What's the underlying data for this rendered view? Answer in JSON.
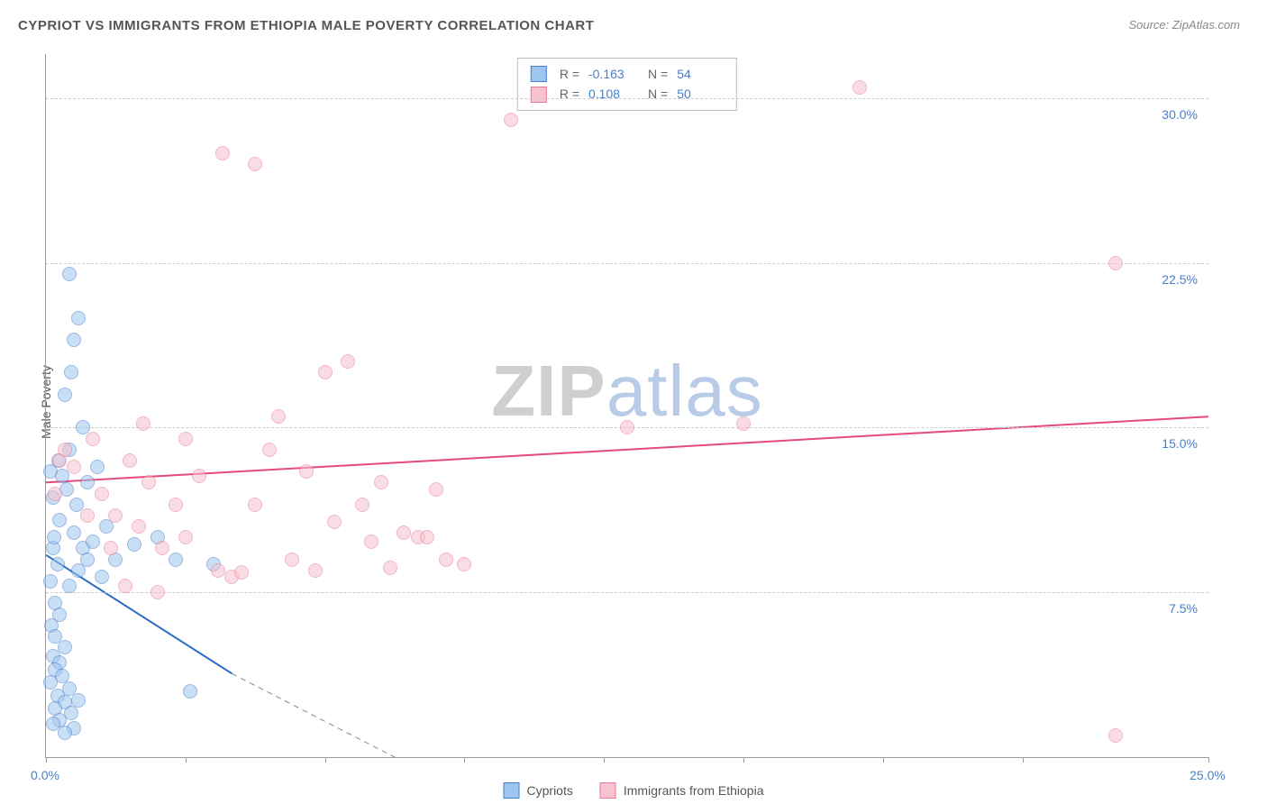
{
  "title": "CYPRIOT VS IMMIGRANTS FROM ETHIOPIA MALE POVERTY CORRELATION CHART",
  "source": "Source: ZipAtlas.com",
  "y_axis_label": "Male Poverty",
  "watermark_a": "ZIP",
  "watermark_b": "atlas",
  "chart": {
    "type": "scatter",
    "background_color": "#ffffff",
    "grid_color": "#cccccc",
    "xlim": [
      0,
      25
    ],
    "ylim": [
      0,
      32
    ],
    "x_ticks": [
      0,
      3,
      6,
      9,
      12,
      15,
      18,
      21,
      25
    ],
    "x_tick_labels": {
      "0": "0.0%",
      "25": "25.0%"
    },
    "y_gridlines": [
      7.5,
      15.0,
      22.5,
      30.0
    ],
    "y_tick_labels": [
      "7.5%",
      "15.0%",
      "22.5%",
      "30.0%"
    ],
    "marker_radius": 8,
    "marker_opacity": 0.55,
    "series": [
      {
        "name": "Cypriots",
        "color_fill": "#9ec5f0",
        "color_stroke": "#4a7ec9",
        "R": "-0.163",
        "N": "54",
        "trend": {
          "x1": 0,
          "y1": 9.2,
          "x2": 4.0,
          "y2": 3.8,
          "extend_x2": 7.5,
          "extend_y2": 0,
          "color": "#2b6cc7",
          "width": 2
        },
        "points": [
          [
            0.1,
            13.0
          ],
          [
            0.15,
            11.8
          ],
          [
            0.1,
            8.0
          ],
          [
            0.2,
            7.0
          ],
          [
            0.3,
            6.5
          ],
          [
            0.12,
            6.0
          ],
          [
            0.2,
            5.5
          ],
          [
            0.4,
            5.0
          ],
          [
            0.15,
            4.6
          ],
          [
            0.3,
            4.3
          ],
          [
            0.2,
            4.0
          ],
          [
            0.35,
            3.7
          ],
          [
            0.1,
            3.4
          ],
          [
            0.5,
            3.1
          ],
          [
            0.25,
            2.8
          ],
          [
            0.4,
            2.5
          ],
          [
            0.2,
            2.2
          ],
          [
            0.55,
            2.0
          ],
          [
            0.3,
            1.7
          ],
          [
            0.15,
            1.5
          ],
          [
            0.6,
            1.3
          ],
          [
            0.4,
            1.1
          ],
          [
            0.7,
            2.6
          ],
          [
            0.5,
            14.0
          ],
          [
            0.8,
            9.5
          ],
          [
            0.6,
            10.2
          ],
          [
            0.9,
            9.0
          ],
          [
            0.7,
            8.5
          ],
          [
            1.0,
            9.8
          ],
          [
            1.2,
            8.2
          ],
          [
            0.5,
            22.0
          ],
          [
            0.7,
            20.0
          ],
          [
            0.6,
            19.0
          ],
          [
            0.55,
            17.5
          ],
          [
            0.4,
            16.5
          ],
          [
            0.8,
            15.0
          ],
          [
            1.3,
            10.5
          ],
          [
            1.5,
            9.0
          ],
          [
            1.9,
            9.7
          ],
          [
            2.4,
            10.0
          ],
          [
            2.8,
            9.0
          ],
          [
            3.6,
            8.8
          ],
          [
            3.1,
            3.0
          ],
          [
            0.45,
            12.2
          ],
          [
            0.3,
            10.8
          ],
          [
            0.65,
            11.5
          ],
          [
            0.9,
            12.5
          ],
          [
            1.1,
            13.2
          ],
          [
            0.15,
            9.5
          ],
          [
            0.25,
            8.8
          ],
          [
            0.5,
            7.8
          ],
          [
            0.35,
            12.8
          ],
          [
            0.18,
            10.0
          ],
          [
            0.28,
            13.5
          ]
        ]
      },
      {
        "name": "Immigrants from Ethiopia",
        "color_fill": "#f6c3ce",
        "color_stroke": "#e87b97",
        "R": "0.108",
        "N": "50",
        "trend": {
          "x1": 0,
          "y1": 12.5,
          "x2": 25,
          "y2": 15.5,
          "color": "#e64a7a",
          "width": 2
        },
        "points": [
          [
            0.3,
            13.5
          ],
          [
            0.4,
            14.0
          ],
          [
            0.2,
            12.0
          ],
          [
            0.6,
            13.2
          ],
          [
            1.0,
            14.5
          ],
          [
            1.2,
            12.0
          ],
          [
            1.5,
            11.0
          ],
          [
            1.8,
            13.5
          ],
          [
            2.0,
            10.5
          ],
          [
            2.2,
            12.5
          ],
          [
            2.5,
            9.5
          ],
          [
            2.8,
            11.5
          ],
          [
            3.0,
            10.0
          ],
          [
            3.3,
            12.8
          ],
          [
            3.7,
            8.5
          ],
          [
            4.0,
            8.2
          ],
          [
            4.2,
            8.4
          ],
          [
            4.5,
            11.5
          ],
          [
            5.0,
            15.5
          ],
          [
            5.3,
            9.0
          ],
          [
            5.6,
            13.0
          ],
          [
            6.2,
            10.7
          ],
          [
            6.5,
            18.0
          ],
          [
            6.8,
            11.5
          ],
          [
            7.0,
            9.8
          ],
          [
            7.2,
            12.5
          ],
          [
            7.4,
            8.6
          ],
          [
            7.7,
            10.2
          ],
          [
            8.0,
            10.0
          ],
          [
            8.2,
            10.0
          ],
          [
            8.6,
            9.0
          ],
          [
            9.0,
            8.8
          ],
          [
            10.0,
            29.0
          ],
          [
            12.5,
            15.0
          ],
          [
            15.0,
            15.2
          ],
          [
            3.8,
            27.5
          ],
          [
            4.5,
            27.0
          ],
          [
            17.5,
            30.5
          ],
          [
            23.0,
            22.5
          ],
          [
            23.0,
            1.0
          ],
          [
            3.0,
            14.5
          ],
          [
            1.7,
            7.8
          ],
          [
            2.1,
            15.2
          ],
          [
            2.4,
            7.5
          ],
          [
            6.0,
            17.5
          ],
          [
            4.8,
            14.0
          ],
          [
            0.9,
            11.0
          ],
          [
            1.4,
            9.5
          ],
          [
            8.4,
            12.2
          ],
          [
            5.8,
            8.5
          ]
        ]
      }
    ]
  },
  "legend_top": {
    "rows": [
      {
        "swatch_fill": "#9ec5f0",
        "swatch_stroke": "#4a7ec9",
        "r_label": "R =",
        "r_val": "-0.163",
        "n_label": "N =",
        "n_val": "54"
      },
      {
        "swatch_fill": "#f6c3ce",
        "swatch_stroke": "#e87b97",
        "r_label": "R =",
        "r_val": "0.108",
        "n_label": "N =",
        "n_val": "50"
      }
    ]
  },
  "legend_bottom": {
    "items": [
      {
        "swatch_fill": "#9ec5f0",
        "swatch_stroke": "#4a7ec9",
        "label": "Cypriots"
      },
      {
        "swatch_fill": "#f6c3ce",
        "swatch_stroke": "#e87b97",
        "label": "Immigrants from Ethiopia"
      }
    ]
  }
}
